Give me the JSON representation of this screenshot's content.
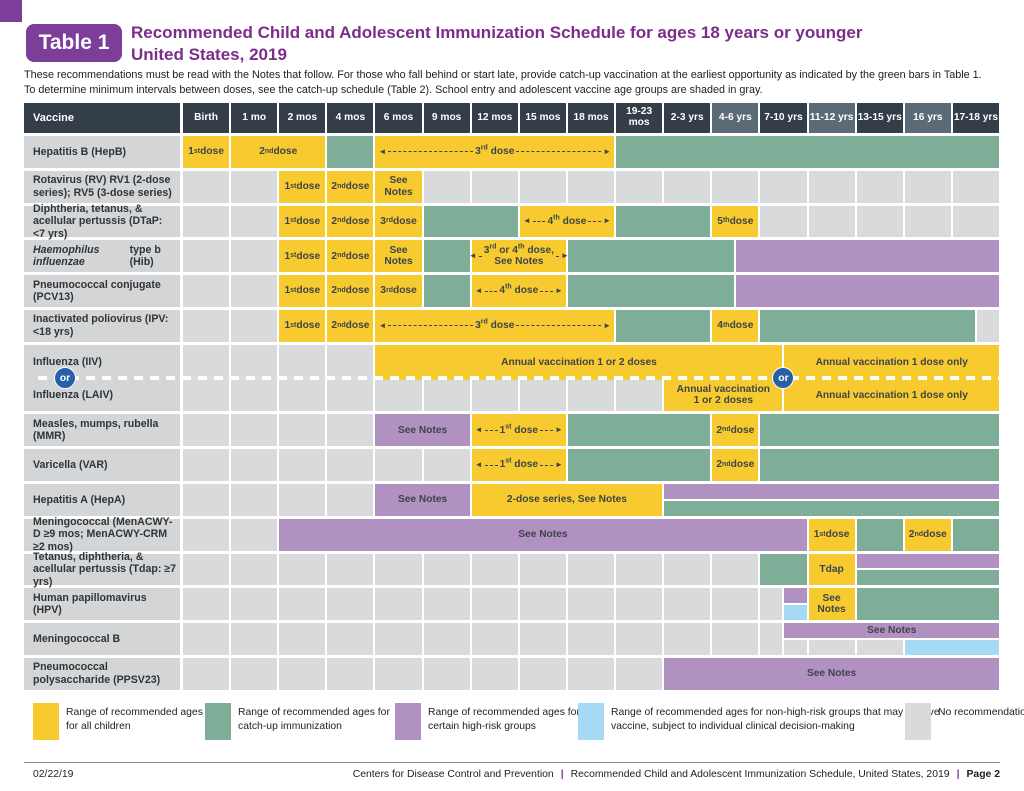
{
  "header": {
    "badge": "Table 1",
    "title": "Recommended Child and Adolescent Immunization Schedule for ages 18 years or younger\nUnited States, 2019"
  },
  "intro": {
    "text": "These recommendations must be read with the Notes that follow. For those who fall behind or start late, provide catch-up vaccination at the earliest opportunity as indicated by the green bars in Table 1.\nTo determine minimum intervals between doses, see the catch-up schedule (Table 2). School entry and adolescent vaccine age groups are shaded in gray."
  },
  "colors": {
    "all_children": "#F7CB2F",
    "catch_up": "#7EAE98",
    "high_risk": "#B190C2",
    "clinical_decision": "#A6D9F4",
    "no_recommendation": "#D9DADB",
    "header_dark": "#333E48",
    "header_shaded": "#5A6B77",
    "accent_purple": "#7C3E98",
    "or_circle_blue": "#2860A8"
  },
  "table": {
    "vaccine_header": "Vaccine",
    "or_label": "or",
    "age_headers": [
      {
        "label": "Birth",
        "shaded": false
      },
      {
        "label": "1 mo",
        "shaded": false
      },
      {
        "label": "2 mos",
        "shaded": false
      },
      {
        "label": "4 mos",
        "shaded": false
      },
      {
        "label": "6 mos",
        "shaded": false
      },
      {
        "label": "9 mos",
        "shaded": false
      },
      {
        "label": "12 mos",
        "shaded": false
      },
      {
        "label": "15 mos",
        "shaded": false
      },
      {
        "label": "18 mos",
        "shaded": false
      },
      {
        "label": "19-23 mos",
        "shaded": false
      },
      {
        "label": "2-3 yrs",
        "shaded": false
      },
      {
        "label": "4-6 yrs",
        "shaded": true
      },
      {
        "label": "7-10 yrs",
        "shaded": false
      },
      {
        "label": "11-12 yrs",
        "shaded": true
      },
      {
        "label": "13-15 yrs",
        "shaded": false
      },
      {
        "label": "16 yrs",
        "shaded": true
      },
      {
        "label": "17-18 yrs",
        "shaded": false
      }
    ],
    "rows": [
      {
        "name": "Hepatitis B (HepB)",
        "cells": [
          {
            "s": 0,
            "e": 1,
            "c": "all",
            "t": "1st dose"
          },
          {
            "s": 1,
            "e": 3,
            "c": "all",
            "t": "2nd dose"
          },
          {
            "s": 3,
            "e": 4,
            "c": "catchup"
          },
          {
            "s": 4,
            "e": 9,
            "c": "all",
            "t": "3rd dose",
            "arrow": true
          },
          {
            "s": 9,
            "e": 17,
            "c": "catchup"
          }
        ]
      },
      {
        "name": "Rotavirus (RV) RV1 (2-dose series); RV5 (3-dose series)",
        "cells": [
          {
            "s": 0,
            "e": 2,
            "c": "none",
            "run": true
          },
          {
            "s": 2,
            "e": 3,
            "c": "all",
            "t": "1st dose"
          },
          {
            "s": 3,
            "e": 4,
            "c": "all",
            "t": "2nd dose"
          },
          {
            "s": 4,
            "e": 5,
            "c": "all",
            "t": "See Notes"
          },
          {
            "s": 5,
            "e": 17,
            "c": "none",
            "run": true
          }
        ]
      },
      {
        "name": "Diphtheria, tetanus, & acellular pertussis (DTaP: <7 yrs)",
        "cells": [
          {
            "s": 0,
            "e": 2,
            "c": "none",
            "run": true
          },
          {
            "s": 2,
            "e": 3,
            "c": "all",
            "t": "1st dose"
          },
          {
            "s": 3,
            "e": 4,
            "c": "all",
            "t": "2nd dose"
          },
          {
            "s": 4,
            "e": 5,
            "c": "all",
            "t": "3rd dose"
          },
          {
            "s": 5,
            "e": 7,
            "c": "catchup"
          },
          {
            "s": 7,
            "e": 9,
            "c": "all",
            "t": "4th dose",
            "arrow": true
          },
          {
            "s": 9,
            "e": 11,
            "c": "catchup"
          },
          {
            "s": 11,
            "e": 12,
            "c": "all",
            "t": "5th dose"
          },
          {
            "s": 12,
            "e": 17,
            "c": "none",
            "run": true
          }
        ]
      },
      {
        "name": "Haemophilus influenzae type b (Hib)",
        "italic": "Haemophilus influenzae",
        "cells": [
          {
            "s": 0,
            "e": 2,
            "c": "none",
            "run": true
          },
          {
            "s": 2,
            "e": 3,
            "c": "all",
            "t": "1st dose"
          },
          {
            "s": 3,
            "e": 4,
            "c": "all",
            "t": "2nd dose"
          },
          {
            "s": 4,
            "e": 5,
            "c": "all",
            "t": "See Notes"
          },
          {
            "s": 5,
            "e": 6,
            "c": "catchup"
          },
          {
            "s": 6,
            "e": 8,
            "c": "all",
            "t": "3rd or 4th dose,\nSee Notes",
            "arrow": true
          },
          {
            "s": 8,
            "e": 11.5,
            "c": "catchup"
          },
          {
            "s": 11.5,
            "e": 17,
            "c": "risk"
          }
        ]
      },
      {
        "name": "Pneumococcal conjugate (PCV13)",
        "cells": [
          {
            "s": 0,
            "e": 2,
            "c": "none",
            "run": true
          },
          {
            "s": 2,
            "e": 3,
            "c": "all",
            "t": "1st dose"
          },
          {
            "s": 3,
            "e": 4,
            "c": "all",
            "t": "2nd dose"
          },
          {
            "s": 4,
            "e": 5,
            "c": "all",
            "t": "3rd dose"
          },
          {
            "s": 5,
            "e": 6,
            "c": "catchup"
          },
          {
            "s": 6,
            "e": 8,
            "c": "all",
            "t": "4th dose",
            "arrow": true
          },
          {
            "s": 8,
            "e": 11.5,
            "c": "catchup"
          },
          {
            "s": 11.5,
            "e": 17,
            "c": "risk"
          }
        ]
      },
      {
        "name": "Inactivated poliovirus (IPV: <18 yrs)",
        "cells": [
          {
            "s": 0,
            "e": 2,
            "c": "none",
            "run": true
          },
          {
            "s": 2,
            "e": 3,
            "c": "all",
            "t": "1st dose"
          },
          {
            "s": 3,
            "e": 4,
            "c": "all",
            "t": "2nd dose"
          },
          {
            "s": 4,
            "e": 9,
            "c": "all",
            "t": "3rd dose",
            "arrow": true
          },
          {
            "s": 9,
            "e": 11,
            "c": "catchup"
          },
          {
            "s": 11,
            "e": 12,
            "c": "all",
            "t": "4th dose"
          },
          {
            "s": 12,
            "e": 16.5,
            "c": "catchup"
          },
          {
            "s": 16.5,
            "e": 17,
            "c": "none"
          }
        ]
      },
      {
        "name": "Influenza (IIV)",
        "tall": true,
        "cells": [
          {
            "s": 0,
            "e": 4,
            "c": "none",
            "run": true
          },
          {
            "s": 4,
            "e": 12.5,
            "c": "all",
            "t": "Annual vaccination 1 or 2 doses"
          },
          {
            "s": 12.5,
            "e": 17,
            "c": "all",
            "t": "Annual vaccination 1 dose only"
          }
        ]
      },
      {
        "name": "Influenza (LAIV)",
        "cells": [
          {
            "s": 0,
            "e": 10,
            "c": "none",
            "run": true
          },
          {
            "s": 10,
            "e": 12.5,
            "c": "all",
            "t": "Annual vaccination\n1 or 2 doses"
          },
          {
            "s": 12.5,
            "e": 17,
            "c": "all",
            "t": "Annual vaccination 1 dose only"
          }
        ]
      },
      {
        "name": "Measles, mumps, rubella (MMR)",
        "cells": [
          {
            "s": 0,
            "e": 4,
            "c": "none",
            "run": true
          },
          {
            "s": 4,
            "e": 6,
            "c": "risk",
            "t": "See Notes"
          },
          {
            "s": 6,
            "e": 8,
            "c": "all",
            "t": "1st dose",
            "arrow": true
          },
          {
            "s": 8,
            "e": 11,
            "c": "catchup"
          },
          {
            "s": 11,
            "e": 12,
            "c": "all",
            "t": "2nd dose"
          },
          {
            "s": 12,
            "e": 17,
            "c": "catchup"
          }
        ]
      },
      {
        "name": "Varicella (VAR)",
        "cells": [
          {
            "s": 0,
            "e": 6,
            "c": "none",
            "run": true
          },
          {
            "s": 6,
            "e": 8,
            "c": "all",
            "t": "1st dose",
            "arrow": true
          },
          {
            "s": 8,
            "e": 11,
            "c": "catchup"
          },
          {
            "s": 11,
            "e": 12,
            "c": "all",
            "t": "2nd dose"
          },
          {
            "s": 12,
            "e": 17,
            "c": "catchup"
          }
        ]
      },
      {
        "name": "Hepatitis A (HepA)",
        "cells": [
          {
            "s": 0,
            "e": 4,
            "c": "none",
            "run": true
          },
          {
            "s": 4,
            "e": 6,
            "c": "risk",
            "t": "See Notes"
          },
          {
            "s": 6,
            "e": 10,
            "c": "all",
            "t": "2-dose series, See Notes"
          },
          {
            "s": 10,
            "e": 17,
            "c": "risk",
            "half": "top"
          },
          {
            "s": 10,
            "e": 17,
            "c": "catchup",
            "half": "bottom"
          }
        ]
      },
      {
        "name": "Meningococcal (MenACWY-D ≥9 mos; MenACWY-CRM ≥2 mos)",
        "cells": [
          {
            "s": 0,
            "e": 2,
            "c": "none",
            "run": true
          },
          {
            "s": 2,
            "e": 13,
            "c": "risk",
            "t": "See Notes"
          },
          {
            "s": 13,
            "e": 14,
            "c": "all",
            "t": "1st dose"
          },
          {
            "s": 14,
            "e": 15,
            "c": "catchup"
          },
          {
            "s": 15,
            "e": 16,
            "c": "all",
            "t": "2nd dose"
          },
          {
            "s": 16,
            "e": 17,
            "c": "catchup"
          }
        ]
      },
      {
        "name": "Tetanus, diphtheria, & acellular pertussis (Tdap: ≥7 yrs)",
        "cells": [
          {
            "s": 0,
            "e": 12,
            "c": "none",
            "run": true
          },
          {
            "s": 12,
            "e": 13,
            "c": "catchup"
          },
          {
            "s": 13,
            "e": 14,
            "c": "all",
            "t": "Tdap"
          },
          {
            "s": 14,
            "e": 17,
            "c": "risk",
            "half": "top"
          },
          {
            "s": 14,
            "e": 17,
            "c": "catchup",
            "half": "bottom"
          }
        ]
      },
      {
        "name": "Human papillomavirus (HPV)",
        "cells": [
          {
            "s": 0,
            "e": 12,
            "c": "none",
            "run": true
          },
          {
            "s": 12,
            "e": 12.5,
            "c": "none"
          },
          {
            "s": 12.5,
            "e": 13,
            "c": "risk",
            "half": "top"
          },
          {
            "s": 12.5,
            "e": 13,
            "c": "clinical",
            "half": "bottom"
          },
          {
            "s": 13,
            "e": 14,
            "c": "all",
            "t": "See\nNotes"
          },
          {
            "s": 14,
            "e": 17,
            "c": "catchup"
          }
        ]
      },
      {
        "name": "Meningococcal B",
        "cells": [
          {
            "s": 0,
            "e": 12,
            "c": "none",
            "run": true
          },
          {
            "s": 12,
            "e": 12.5,
            "c": "none"
          },
          {
            "s": 12.5,
            "e": 17,
            "c": "risk",
            "t": "See Notes",
            "half": "top"
          },
          {
            "s": 12.5,
            "e": 13,
            "c": "none",
            "half": "bottom"
          },
          {
            "s": 13,
            "e": 14,
            "c": "none",
            "half": "bottom"
          },
          {
            "s": 14,
            "e": 15,
            "c": "none",
            "half": "bottom"
          },
          {
            "s": 15,
            "e": 17,
            "c": "clinical",
            "half": "bottom"
          }
        ]
      },
      {
        "name": "Pneumococcal polysaccharide (PPSV23)",
        "cells": [
          {
            "s": 0,
            "e": 10,
            "c": "none",
            "run": true
          },
          {
            "s": 10,
            "e": 17,
            "c": "risk",
            "t": "See Notes"
          }
        ]
      }
    ]
  },
  "legend": [
    {
      "type": "all",
      "text": "Range of recommended ages for all children"
    },
    {
      "type": "catchup",
      "text": "Range of recommended ages for catch-up immunization"
    },
    {
      "type": "risk",
      "text": "Range of recommended ages for certain high-risk groups"
    },
    {
      "type": "clinical",
      "text": "Range of recommended ages for non-high-risk groups that may receive vaccine, subject to individual clinical decision-making"
    },
    {
      "type": "none",
      "text": "No recommendation"
    }
  ],
  "footer": {
    "date": "02/22/19",
    "org": "Centers for Disease Control and Prevention",
    "doc": "Recommended Child and Adolescent Immunization Schedule, United States, 2019",
    "sep": "|",
    "page": "Page 2"
  }
}
